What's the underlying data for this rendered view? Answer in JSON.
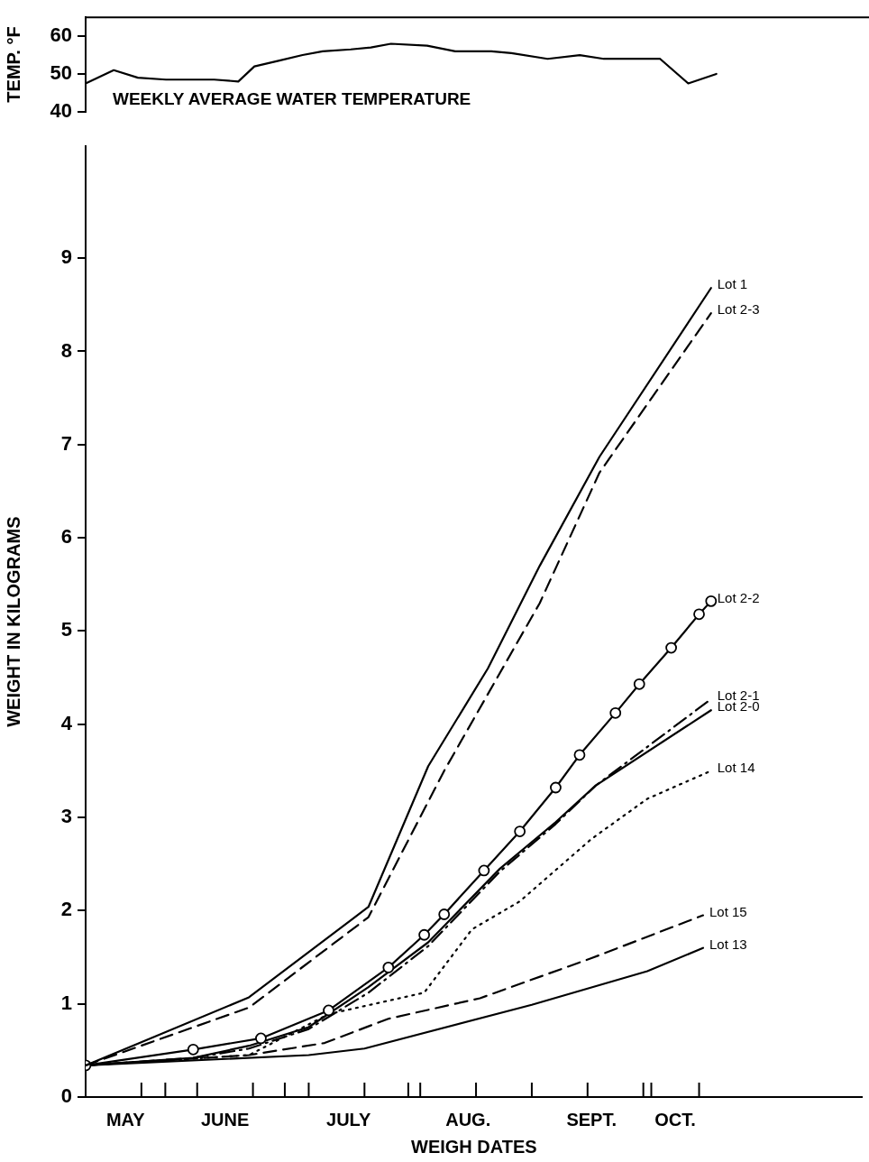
{
  "chart_data": [
    {
      "type": "line",
      "ylabel": "TEMP. °F",
      "annotations": [
        "WEEKLY AVERAGE WATER TEMPERATURE"
      ],
      "x": [
        "--05-12",
        "--05-19",
        "--05-25",
        "--06-01",
        "--06-13",
        "--06-19",
        "--06-23",
        "--06-29",
        "--07-05",
        "--07-10",
        "--07-17",
        "--07-22",
        "--07-27",
        "--08-05",
        "--08-12",
        "--08-21",
        "--08-26",
        "--09-04",
        "--09-12",
        "--09-18",
        "--10-02",
        "--10-09",
        "--10-16"
      ],
      "values": [
        47.5,
        51,
        49,
        48.5,
        48.5,
        48,
        52,
        53.5,
        55,
        56,
        56.5,
        57,
        58,
        57.5,
        56,
        56,
        55.5,
        54,
        55,
        54,
        54,
        47.5,
        50
      ],
      "color": "#000000",
      "xlim": [
        "--05-12",
        "--11-23"
      ],
      "ylim": [
        40,
        65
      ],
      "yticks": [
        40,
        50,
        60
      ],
      "tick_labels": "y",
      "grid": false,
      "legend": false,
      "marker": "none",
      "line_style": "solid"
    },
    {
      "type": "line",
      "xlabel": "WEIGH DATES",
      "ylabel": "WEIGHT IN KILOGRAMS",
      "xlim": [
        "--05-12",
        "--11-23"
      ],
      "ylim": [
        0,
        10.2
      ],
      "yticks": [
        0,
        1,
        2,
        3,
        4,
        5,
        6,
        7,
        8,
        9
      ],
      "xticks": [
        {
          "value": "--05-22",
          "label": "MAY"
        },
        {
          "value": "--06-16",
          "label": "JUNE"
        },
        {
          "value": "--07-17",
          "label": "JULY"
        },
        {
          "value": "--08-16",
          "label": "AUG."
        },
        {
          "value": "--09-16",
          "label": "SEPT."
        },
        {
          "value": "--10-07",
          "label": "OCT."
        },
        {
          "value": "--06-01",
          "label": null
        },
        {
          "value": "--07-01",
          "label": null
        },
        {
          "value": "--08-01",
          "label": null
        },
        {
          "value": "--09-01",
          "label": null
        },
        {
          "value": "--10-01",
          "label": null
        },
        {
          "value": "--05-26",
          "label": null
        },
        {
          "value": "--06-09",
          "label": null
        },
        {
          "value": "--06-23",
          "label": null
        },
        {
          "value": "--07-07",
          "label": null
        },
        {
          "value": "--07-21",
          "label": null
        },
        {
          "value": "--08-04",
          "label": null
        },
        {
          "value": "--08-18",
          "label": null
        },
        {
          "value": "--09-15",
          "label": null
        },
        {
          "value": "--09-29",
          "label": null
        },
        {
          "value": "--10-13",
          "label": null
        }
      ],
      "grid": false,
      "legend": false,
      "marker": "none",
      "series": [
        {
          "name": "Lot 1",
          "color": "#000000",
          "line_style": "solid",
          "x": [
            "--05-12",
            "--06-22",
            "--07-22",
            "--08-06",
            "--08-21",
            "--09-03",
            "--09-18",
            "--10-16"
          ],
          "values": [
            0.34,
            1.07,
            2.04,
            3.55,
            4.6,
            5.7,
            6.87,
            8.68
          ]
        },
        {
          "name": "Lot 2-3",
          "color": "#000000",
          "line_style": "dashed",
          "x": [
            "--05-12",
            "--06-22",
            "--07-22",
            "--08-10",
            "--09-03",
            "--09-18",
            "--10-16"
          ],
          "values": [
            0.34,
            0.96,
            1.93,
            3.5,
            5.3,
            6.7,
            8.41
          ]
        },
        {
          "name": "Lot 2-2",
          "color": "#000000",
          "line_style": "solid",
          "marker": "circle",
          "x": [
            "--05-12",
            "--06-08",
            "--06-25",
            "--07-12",
            "--07-27",
            "--08-05",
            "--08-10",
            "--08-20",
            "--08-29",
            "--09-07",
            "--09-13",
            "--09-22",
            "--09-28",
            "--10-06",
            "--10-13",
            "--10-16"
          ],
          "values": [
            0.34,
            0.51,
            0.63,
            0.93,
            1.39,
            1.74,
            1.96,
            2.43,
            2.85,
            3.32,
            3.67,
            4.12,
            4.43,
            4.82,
            5.18,
            5.32
          ]
        },
        {
          "name": "Lot 2-1",
          "color": "#000000",
          "line_style": "dashdot",
          "x": [
            "--05-12",
            "--06-08",
            "--06-22",
            "--07-07",
            "--07-22",
            "--08-06",
            "--08-24",
            "--09-07",
            "--09-17",
            "--10-16"
          ],
          "values": [
            0.34,
            0.42,
            0.52,
            0.73,
            1.12,
            1.62,
            2.42,
            2.93,
            3.34,
            4.27
          ]
        },
        {
          "name": "Lot 2-0",
          "color": "#000000",
          "line_style": "solid",
          "x": [
            "--05-12",
            "--06-08",
            "--06-22",
            "--07-07",
            "--07-22",
            "--08-06",
            "--08-24",
            "--09-07",
            "--09-17",
            "--10-16"
          ],
          "values": [
            0.34,
            0.42,
            0.55,
            0.75,
            1.18,
            1.66,
            2.45,
            2.95,
            3.34,
            4.15
          ]
        },
        {
          "name": "Lot 14",
          "color": "#000000",
          "line_style": "dotted",
          "x": [
            "--05-12",
            "--06-22",
            "--07-12",
            "--08-05",
            "--08-17",
            "--08-29",
            "--09-16",
            "--09-30",
            "--10-16"
          ],
          "values": [
            0.34,
            0.45,
            0.89,
            1.12,
            1.8,
            2.1,
            2.77,
            3.2,
            3.5
          ]
        },
        {
          "name": "Lot 15",
          "color": "#000000",
          "line_style": "dashed",
          "x": [
            "--05-12",
            "--06-22",
            "--07-11",
            "--07-27",
            "--08-19",
            "--09-16",
            "--10-14"
          ],
          "values": [
            0.34,
            0.45,
            0.58,
            0.84,
            1.06,
            1.49,
            1.95
          ]
        },
        {
          "name": "Lot 13",
          "color": "#000000",
          "line_style": "solid",
          "x": [
            "--05-12",
            "--07-07",
            "--07-21",
            "--09-01",
            "--09-30",
            "--10-14"
          ],
          "values": [
            0.34,
            0.45,
            0.52,
            0.99,
            1.35,
            1.6
          ]
        }
      ]
    }
  ]
}
